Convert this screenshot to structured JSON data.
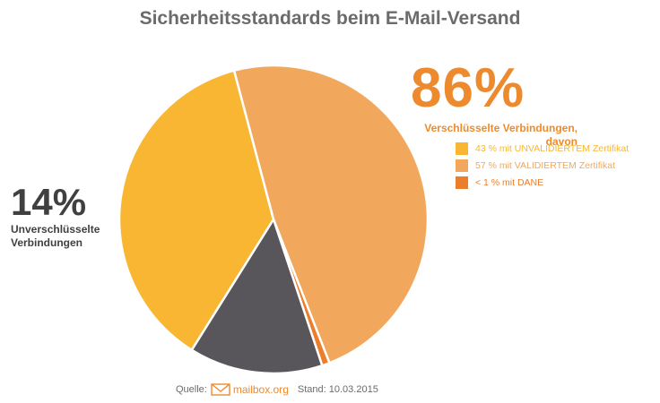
{
  "title": "Sicherheitsstandards beim E-Mail-Versand",
  "encrypted": {
    "percent": "86%",
    "label_line1": "Verschlüsselte Verbindungen,",
    "label_line2": "davon"
  },
  "unencrypted": {
    "percent": "14%",
    "label_line1": "Unverschlüsselte",
    "label_line2": "Verbindungen"
  },
  "legend": [
    {
      "label": "43 % mit UNVALIDIERTEM Zertifikat",
      "color": "#f8b632"
    },
    {
      "label": "57 % mit VALIDIERTEM Zertifikat",
      "color": "#f2a85c"
    },
    {
      "label": "< 1 % mit DANE",
      "color": "#ec7d2a"
    }
  ],
  "footer": {
    "source_label": "Quelle:",
    "brand": "mailbox",
    "brand_tld": ".org",
    "date_label": "Stand: 10.03.2015"
  },
  "chart_data": {
    "type": "pie",
    "title": "Sicherheitsstandards beim E-Mail-Versand",
    "slices": [
      {
        "name": "Verschlüsselt – mit UNVALIDIERTEM Zertifikat",
        "value": 37,
        "color": "#f8b632"
      },
      {
        "name": "Verschlüsselt – mit VALIDIERTEM Zertifikat",
        "value": 48.2,
        "color": "#f2a85c"
      },
      {
        "name": "Verschlüsselt – mit DANE",
        "value": 0.8,
        "color": "#ec7d2a"
      },
      {
        "name": "Unverschlüsselte Verbindungen",
        "value": 14,
        "color": "#58565a"
      }
    ],
    "start_angle_deg": 122,
    "direction": "clockwise"
  }
}
